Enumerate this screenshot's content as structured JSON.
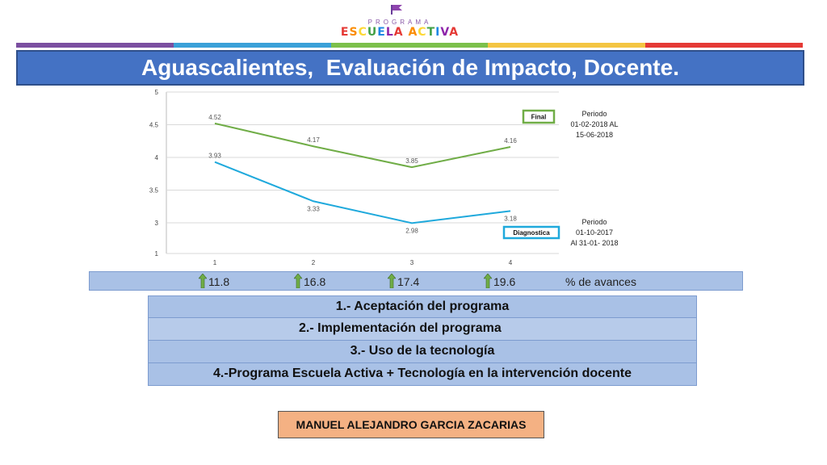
{
  "logo": {
    "program": "PROGRAMA",
    "name": "ESCUELA ACTIVA",
    "colors": [
      "#e53935",
      "#fb8c00",
      "#fdd835",
      "#43a047",
      "#1e88e5",
      "#8e24aa"
    ]
  },
  "stripe_colors": [
    "#7b4fa0",
    "#3aa0d8",
    "#7cc04b",
    "#f4c542",
    "#e53935"
  ],
  "slide": {
    "title": "Aguascalientes,  Evaluación de Impacto, Docente."
  },
  "chart_data": {
    "type": "line",
    "categories": [
      "1",
      "2",
      "3",
      "4"
    ],
    "ylim": [
      1,
      5
    ],
    "yticks": [
      "1",
      "3",
      "3.5",
      "4",
      "4.5",
      "5"
    ],
    "grid": true,
    "series": [
      {
        "name": "Final",
        "values": [
          4.52,
          4.17,
          3.85,
          4.16
        ],
        "labels": [
          "4.52",
          "4.17",
          "3.85",
          "4.16"
        ],
        "color": "#70ad47"
      },
      {
        "name": "Diagnostica",
        "values": [
          3.93,
          3.33,
          2.98,
          3.18
        ],
        "labels": [
          "3.93",
          "3.33",
          "2.98",
          "3.18"
        ],
        "color": "#1fa9dc"
      }
    ]
  },
  "periods": {
    "final": "Periodo\n01-02-2018 AL\n15-06-2018",
    "diagnostica": "Periodo\n01-10-2017\nAl 31-01- 2018"
  },
  "advances": {
    "values": [
      "11.8",
      "16.8",
      "17.4",
      "19.6"
    ],
    "label": "% de avances",
    "arrow_color": "#70ad47"
  },
  "list": [
    "1.- Aceptación del programa",
    "2.- Implementación del programa",
    "3.- Uso de la tecnología",
    "4.-Programa Escuela Activa + Tecnología en la intervención docente"
  ],
  "author": "MANUEL ALEJANDRO GARCIA ZACARIAS"
}
